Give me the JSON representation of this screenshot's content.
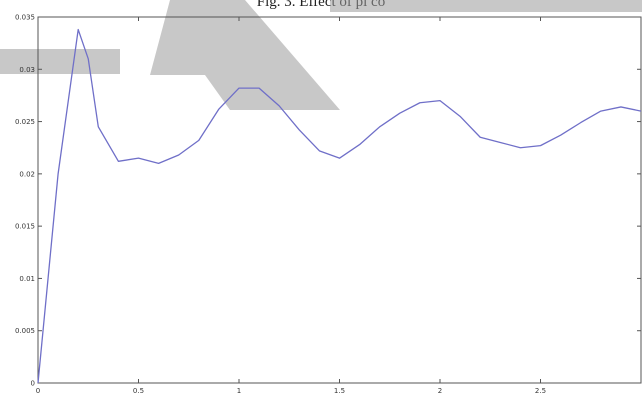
{
  "chart_data": {
    "type": "line",
    "title": "",
    "xlabel": "",
    "ylabel": "",
    "xlim": [
      0,
      3
    ],
    "ylim": [
      0,
      0.035
    ],
    "grid": false,
    "xticks": [
      {
        "value": 0,
        "label": "0"
      },
      {
        "value": 0.5,
        "label": "0.5"
      },
      {
        "value": 1,
        "label": "1"
      },
      {
        "value": 1.5,
        "label": "1.5"
      },
      {
        "value": 2,
        "label": "2"
      },
      {
        "value": 2.5,
        "label": "2.5"
      }
    ],
    "yticks": [
      {
        "value": 0,
        "label": "0"
      },
      {
        "value": 0.005,
        "label": "0.005"
      },
      {
        "value": 0.01,
        "label": "0.01"
      },
      {
        "value": 0.015,
        "label": "0.015"
      },
      {
        "value": 0.02,
        "label": "0.02"
      },
      {
        "value": 0.025,
        "label": "0.025"
      },
      {
        "value": 0.03,
        "label": "0.03"
      },
      {
        "value": 0.035,
        "label": "0.035"
      }
    ],
    "series": [
      {
        "color": "#6f6fc8",
        "x": [
          0,
          0.1,
          0.2,
          0.25,
          0.3,
          0.4,
          0.5,
          0.6,
          0.7,
          0.8,
          0.9,
          1.0,
          1.1,
          1.2,
          1.3,
          1.4,
          1.5,
          1.6,
          1.7,
          1.8,
          1.9,
          2.0,
          2.1,
          2.2,
          2.3,
          2.4,
          2.5,
          2.6,
          2.7,
          2.8,
          2.9,
          3.0
        ],
        "y": [
          0,
          0.02,
          0.0338,
          0.031,
          0.0245,
          0.0212,
          0.0215,
          0.021,
          0.0218,
          0.0232,
          0.0262,
          0.0282,
          0.0282,
          0.0265,
          0.0242,
          0.0222,
          0.0215,
          0.0228,
          0.0245,
          0.0258,
          0.0268,
          0.027,
          0.0255,
          0.0235,
          0.023,
          0.0225,
          0.0227,
          0.0237,
          0.0249,
          0.026,
          0.0264,
          0.026
        ]
      }
    ]
  },
  "title_text": "Fig. 3. Effect of pi co"
}
